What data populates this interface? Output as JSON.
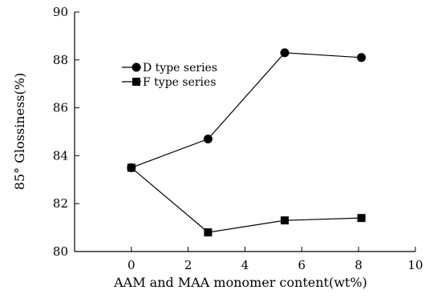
{
  "chart_data": {
    "type": "line",
    "xlabel": "AAM and MAA monomer content(wt%)",
    "ylabel": "85° Glossiness(%)",
    "xlim": [
      -2,
      10
    ],
    "ylim": [
      80,
      90
    ],
    "x_ticks": [
      0,
      2,
      4,
      6,
      8,
      10
    ],
    "y_ticks": [
      80,
      82,
      84,
      86,
      88,
      90
    ],
    "grid": false,
    "legend_position": "upper-left",
    "series": [
      {
        "name": "D type series",
        "marker": "circle",
        "color": "#000000",
        "x": [
          0,
          2.7,
          5.4,
          8.1
        ],
        "y": [
          83.5,
          84.7,
          88.3,
          88.1
        ]
      },
      {
        "name": "F type series",
        "marker": "square",
        "color": "#000000",
        "x": [
          0,
          2.7,
          5.4,
          8.1
        ],
        "y": [
          83.5,
          80.8,
          81.3,
          81.4
        ]
      }
    ]
  }
}
